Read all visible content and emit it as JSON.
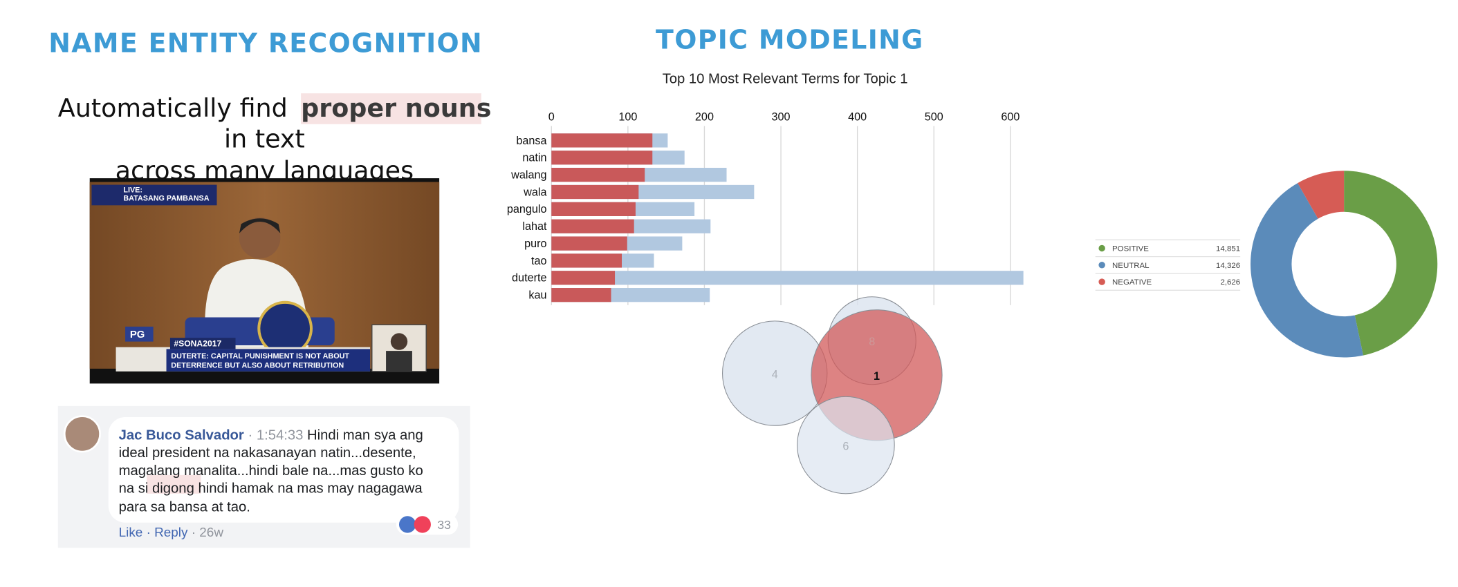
{
  "ner": {
    "title": "NAME ENTITY RECOGNITION",
    "tagline": [
      "Automatically find",
      "proper nouns",
      "in text",
      "across many languages"
    ],
    "video": {
      "live": "LIVE:",
      "channel": "BATASANG PAMBANSA",
      "logo": "PG",
      "hashtag": "#SONA2017",
      "headline": [
        "DUTERTE: CAPITAL PUNISHMENT IS NOT ABOUT",
        "DETERRENCE BUT ALSO ABOUT RETRIBUTION"
      ]
    },
    "comment": {
      "author": "Jac Buco Salvador",
      "time": "· 1:54:33",
      "lines": [
        "Hindi man sya ang",
        "ideal president na nakasanayan natin...desente,",
        "magalang manalita...hindi bale na...mas gusto ko",
        "para sa bansa at tao."
      ],
      "line4": [
        "na si ",
        "digong",
        " hindi hamak na mas may nagagawa"
      ],
      "reactions": "33",
      "like": "Like",
      "sep": "·",
      "reply": "Reply",
      "age": "· 26w"
    }
  },
  "topic_title": "TOPIC MODELING",
  "topic_map": {
    "labels": [
      "4",
      "8",
      "1",
      "6"
    ]
  },
  "chart_data": [
    {
      "type": "bar",
      "orientation": "horizontal",
      "stacked": false,
      "title": "Top 10 Most Relevant Terms for Topic 1",
      "categories": [
        "bansa",
        "natin",
        "walang",
        "wala",
        "pangulo",
        "lahat",
        "puro",
        "tao",
        "duterte",
        "kau"
      ],
      "series": [
        {
          "color": "#b1c8e0",
          "values": [
            152,
            174,
            229,
            265,
            187,
            208,
            171,
            134,
            617,
            207
          ]
        },
        {
          "color": "#c9595a",
          "values": [
            132,
            132,
            122,
            114,
            110,
            108,
            99,
            92,
            83,
            78
          ]
        }
      ],
      "xlim": [
        0,
        617
      ],
      "xticks": [
        0,
        100,
        200,
        300,
        400,
        500,
        600
      ],
      "grid": true
    },
    {
      "type": "donut",
      "categories": [
        "POSITIVE",
        "NEUTRAL",
        "NEGATIVE"
      ],
      "values": [
        14851,
        14326,
        2626
      ],
      "value_labels": [
        "14,851",
        "14,326",
        "2,626"
      ],
      "colors": [
        "#6a9e47",
        "#5b8bba",
        "#d65c55"
      ]
    }
  ]
}
